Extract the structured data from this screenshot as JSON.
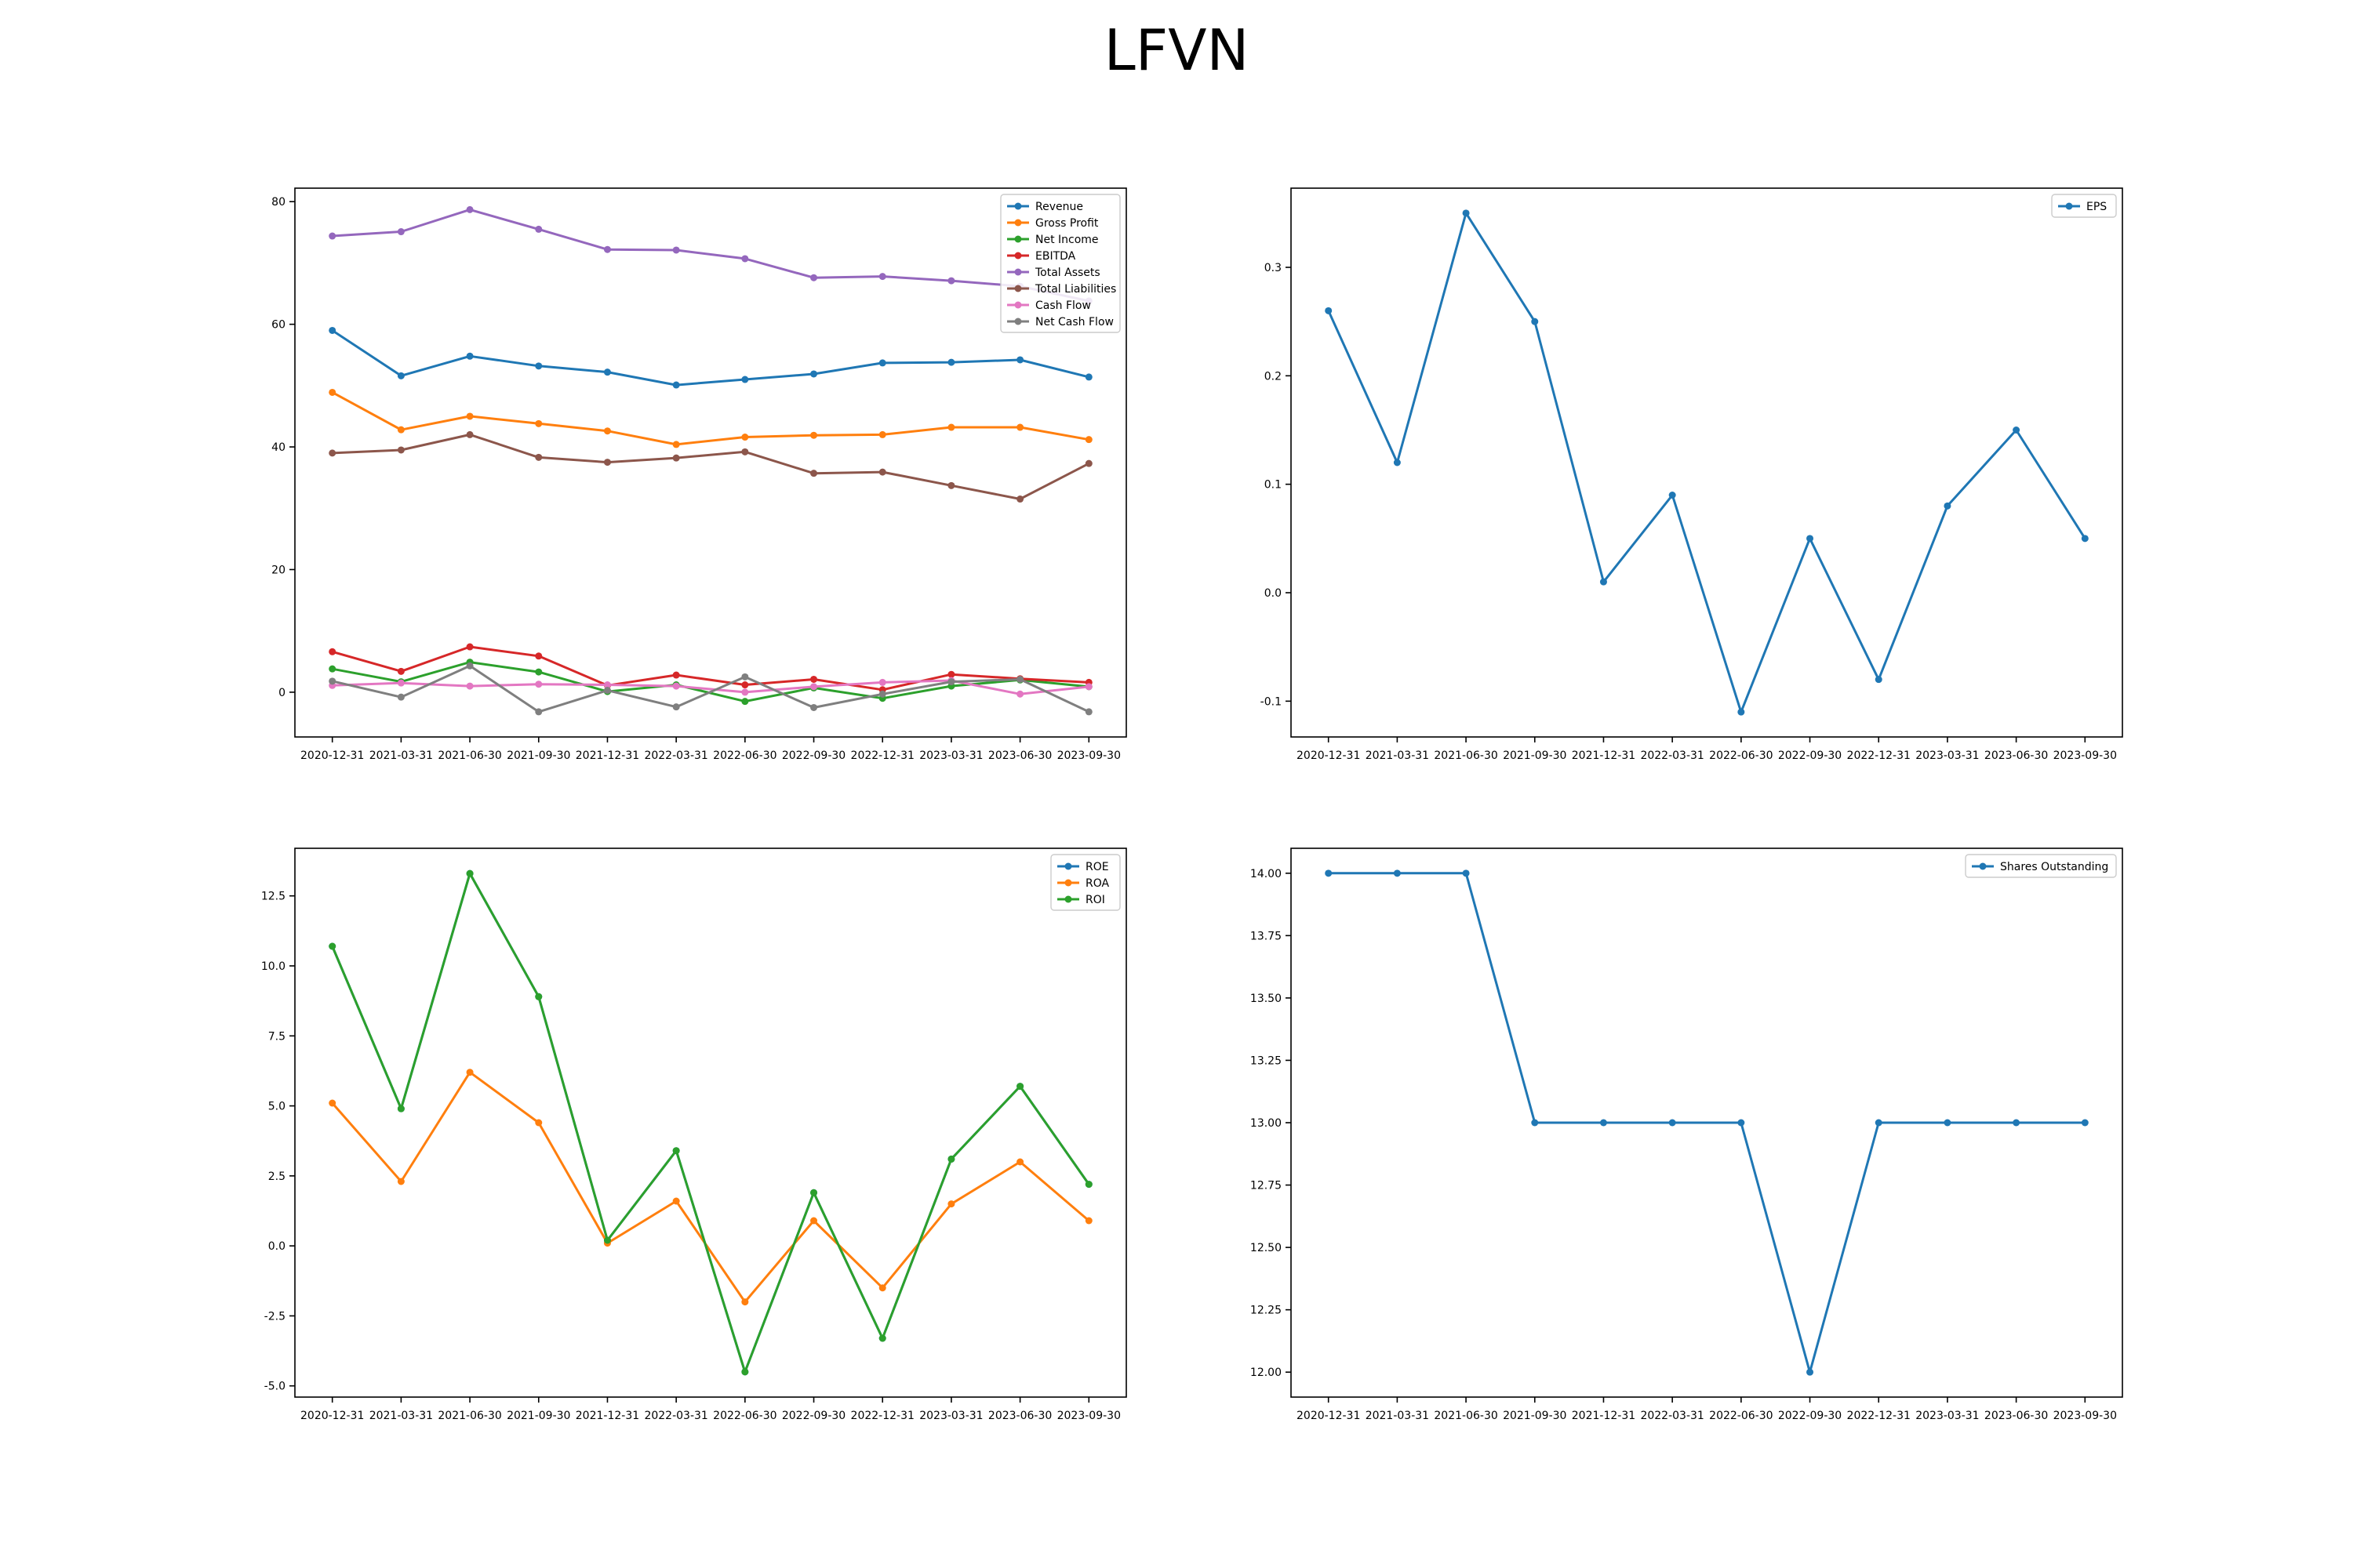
{
  "title": "LFVN",
  "chart_data": [
    {
      "type": "line",
      "x": [
        "2020-12-31",
        "2021-03-31",
        "2021-06-30",
        "2021-09-30",
        "2021-12-31",
        "2022-03-31",
        "2022-06-30",
        "2022-09-30",
        "2022-12-31",
        "2023-03-31",
        "2023-06-30",
        "2023-09-30"
      ],
      "ylim": [
        -7.3,
        82.2
      ],
      "yticks": [
        0,
        20,
        40,
        60,
        80
      ],
      "legend": "top-right",
      "grid": false,
      "series": [
        {
          "name": "Revenue",
          "color": "#1f77b4",
          "values": [
            59.0,
            51.6,
            54.8,
            53.2,
            52.2,
            50.1,
            51.0,
            51.9,
            53.7,
            53.8,
            54.2,
            51.4
          ]
        },
        {
          "name": "Gross Profit",
          "color": "#ff7f0e",
          "values": [
            48.9,
            42.8,
            45.0,
            43.8,
            42.6,
            40.4,
            41.6,
            41.9,
            42.0,
            43.2,
            43.2,
            41.2
          ]
        },
        {
          "name": "Net Income",
          "color": "#2ca02c",
          "values": [
            3.8,
            1.7,
            4.9,
            3.3,
            0.1,
            1.2,
            -1.5,
            0.7,
            -1.0,
            1.0,
            2.0,
            0.9
          ]
        },
        {
          "name": "EBITDA",
          "color": "#d62728",
          "values": [
            6.6,
            3.4,
            7.4,
            5.9,
            1.1,
            2.8,
            1.2,
            2.1,
            0.4,
            2.9,
            2.2,
            1.6
          ]
        },
        {
          "name": "Total Assets",
          "color": "#9467bd",
          "values": [
            74.4,
            75.1,
            78.7,
            75.5,
            72.2,
            72.1,
            70.7,
            67.6,
            67.8,
            67.1,
            66.2,
            63.8
          ]
        },
        {
          "name": "Total Liabilities",
          "color": "#8c564b",
          "values": [
            39.0,
            39.5,
            42.0,
            38.3,
            37.5,
            38.2,
            39.2,
            35.7,
            35.9,
            33.7,
            31.5,
            37.3
          ]
        },
        {
          "name": "Cash Flow",
          "color": "#e377c2",
          "values": [
            1.1,
            1.5,
            1.0,
            1.3,
            1.2,
            1.0,
            0.0,
            0.9,
            1.6,
            1.9,
            -0.3,
            0.9
          ]
        },
        {
          "name": "Net Cash Flow",
          "color": "#7f7f7f",
          "values": [
            1.8,
            -0.8,
            4.3,
            -3.2,
            0.3,
            -2.4,
            2.5,
            -2.5,
            -0.3,
            1.7,
            2.1,
            -3.2
          ]
        }
      ]
    },
    {
      "type": "line",
      "x": [
        "2020-12-31",
        "2021-03-31",
        "2021-06-30",
        "2021-09-30",
        "2021-12-31",
        "2022-03-31",
        "2022-06-30",
        "2022-09-30",
        "2022-12-31",
        "2023-03-31",
        "2023-06-30",
        "2023-09-30"
      ],
      "ylim": [
        -0.133,
        0.373
      ],
      "yticks": [
        -0.1,
        0.0,
        0.1,
        0.2,
        0.3
      ],
      "legend": "top-right",
      "grid": false,
      "series": [
        {
          "name": "EPS",
          "color": "#1f77b4",
          "values": [
            0.26,
            0.12,
            0.35,
            0.25,
            0.01,
            0.09,
            -0.11,
            0.05,
            -0.08,
            0.08,
            0.15,
            0.05
          ]
        }
      ]
    },
    {
      "type": "line",
      "x": [
        "2020-12-31",
        "2021-03-31",
        "2021-06-30",
        "2021-09-30",
        "2021-12-31",
        "2022-03-31",
        "2022-06-30",
        "2022-09-30",
        "2022-12-31",
        "2023-03-31",
        "2023-06-30",
        "2023-09-30"
      ],
      "ylim": [
        -5.4,
        14.2
      ],
      "yticks": [
        -5.0,
        -2.5,
        0.0,
        2.5,
        5.0,
        7.5,
        10.0,
        12.5
      ],
      "legend": "top-right",
      "grid": false,
      "series": [
        {
          "name": "ROE",
          "color": "#1f77b4",
          "values": [
            10.7,
            4.9,
            13.3,
            8.9,
            0.2,
            3.4,
            -4.5,
            1.9,
            -3.3,
            3.1,
            5.7,
            2.2
          ]
        },
        {
          "name": "ROA",
          "color": "#ff7f0e",
          "values": [
            5.1,
            2.3,
            6.2,
            4.4,
            0.1,
            1.6,
            -2.0,
            0.9,
            -1.5,
            1.5,
            3.0,
            0.9
          ]
        },
        {
          "name": "ROI",
          "color": "#2ca02c",
          "values": [
            10.7,
            4.9,
            13.3,
            8.9,
            0.2,
            3.4,
            -4.5,
            1.9,
            -3.3,
            3.1,
            5.7,
            2.2
          ]
        }
      ]
    },
    {
      "type": "line",
      "x": [
        "2020-12-31",
        "2021-03-31",
        "2021-06-30",
        "2021-09-30",
        "2021-12-31",
        "2022-03-31",
        "2022-06-30",
        "2022-09-30",
        "2022-12-31",
        "2023-03-31",
        "2023-06-30",
        "2023-09-30"
      ],
      "ylim": [
        11.9,
        14.1
      ],
      "yticks": [
        12.0,
        12.25,
        12.5,
        12.75,
        13.0,
        13.25,
        13.5,
        13.75,
        14.0
      ],
      "legend": "top-right",
      "grid": false,
      "series": [
        {
          "name": "Shares Outstanding",
          "color": "#1f77b4",
          "values": [
            14.0,
            14.0,
            14.0,
            13.0,
            13.0,
            13.0,
            13.0,
            12.0,
            13.0,
            13.0,
            13.0,
            13.0
          ]
        }
      ]
    }
  ]
}
